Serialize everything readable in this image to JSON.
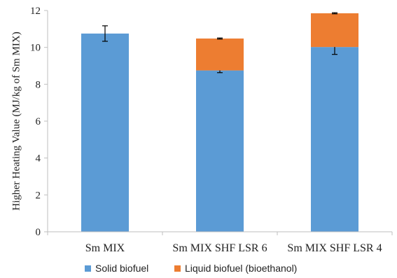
{
  "chart_data": {
    "type": "bar",
    "stacked": true,
    "categories": [
      "Sm MIX",
      "Sm MIX SHF LSR 6",
      "Sm MIX SHF LSR 4"
    ],
    "series": [
      {
        "name": "Solid biofuel",
        "color": "#5b9bd5",
        "values": [
          10.75,
          8.75,
          10.02
        ],
        "errors": [
          0.42,
          0.12,
          0.4
        ]
      },
      {
        "name": "Liquid biofuel (bioethanol)",
        "color": "#ed7d31",
        "values": [
          0,
          1.73,
          1.83
        ],
        "errors": [
          null,
          0.03,
          0.03
        ]
      }
    ],
    "ylabel": "Higher Heating Value (MJ/kg of Sm MIX)",
    "xlabel": "",
    "ylim": [
      0,
      12
    ],
    "yticks": [
      0,
      2,
      4,
      6,
      8,
      10,
      12
    ],
    "grid": false,
    "legend_position": "bottom"
  }
}
